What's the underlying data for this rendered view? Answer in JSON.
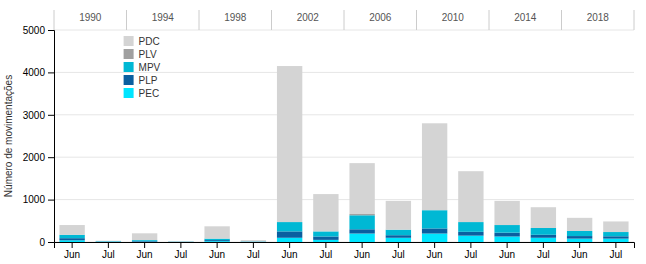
{
  "chart_data": {
    "type": "bar",
    "stacked": true,
    "y_label": "Número de movimentações",
    "categories": [
      "Jun",
      "Jul",
      "Jun",
      "Jul",
      "Jun",
      "Jul",
      "Jun",
      "Jul",
      "Jun",
      "Jul",
      "Jun",
      "Jul",
      "Jun",
      "Jul",
      "Jun",
      "Jul"
    ],
    "groups": [
      "1990",
      "1994",
      "1998",
      "2002",
      "2006",
      "2010",
      "2014",
      "2018"
    ],
    "series": [
      {
        "name": "PEC",
        "color": "#00e5ff",
        "values": [
          40,
          5,
          10,
          3,
          20,
          5,
          100,
          50,
          200,
          100,
          200,
          150,
          130,
          100,
          80,
          80
        ]
      },
      {
        "name": "PLP",
        "color": "#0a5fa0",
        "values": [
          50,
          5,
          15,
          3,
          25,
          5,
          150,
          80,
          100,
          60,
          120,
          90,
          90,
          70,
          60,
          55
        ]
      },
      {
        "name": "MPV",
        "color": "#00b8d4",
        "values": [
          80,
          10,
          20,
          5,
          35,
          5,
          220,
          120,
          330,
          130,
          430,
          230,
          180,
          160,
          120,
          100
        ]
      },
      {
        "name": "PLV",
        "color": "#a0a0a0",
        "values": [
          0,
          0,
          0,
          0,
          0,
          0,
          0,
          0,
          30,
          0,
          0,
          0,
          0,
          0,
          0,
          0
        ]
      },
      {
        "name": "PDC",
        "color": "#d4d4d4",
        "values": [
          230,
          10,
          160,
          10,
          290,
          30,
          3680,
          880,
          1200,
          680,
          2050,
          1200,
          570,
          490,
          310,
          250
        ]
      }
    ],
    "ylim": [
      0,
      5000
    ],
    "yticks": [
      0,
      1000,
      2000,
      3000,
      4000,
      5000
    ],
    "grid": true,
    "legend": "top-left"
  }
}
